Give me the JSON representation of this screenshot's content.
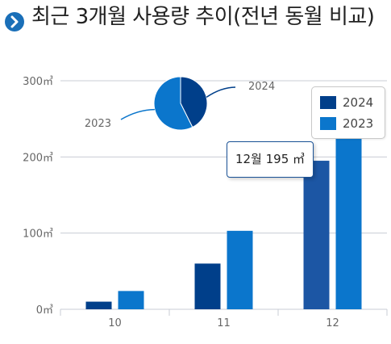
{
  "header": {
    "title": "최근 3개월 사용량 추이(전년 동월 비교)",
    "icon": "chevron-right-icon"
  },
  "colors": {
    "series_2024": "#003f8a",
    "series_2024_highlight": "#1c56a4",
    "series_2023": "#0b76cc",
    "pie_2024": "#003f8a",
    "pie_2023": "#0b76cc",
    "grid": "#c8ccd4",
    "accent": "#1a6fb8"
  },
  "chart_data": [
    {
      "type": "bar",
      "categories": [
        "10",
        "11",
        "12"
      ],
      "series": [
        {
          "name": "2024",
          "values": [
            10,
            60,
            195
          ]
        },
        {
          "name": "2023",
          "values": [
            24,
            103,
            230
          ]
        }
      ],
      "yticks": [
        "0㎥",
        "100㎥",
        "200㎥",
        "300㎥"
      ],
      "ytick_values": [
        0,
        100,
        200,
        300
      ],
      "ylim": [
        0,
        300
      ],
      "grid": true,
      "legend": "top-right",
      "tooltip": {
        "category": "12",
        "text": "12월 195 ㎥"
      }
    },
    {
      "type": "pie",
      "labels": [
        "2024",
        "2023"
      ],
      "values": [
        265,
        357
      ]
    }
  ]
}
